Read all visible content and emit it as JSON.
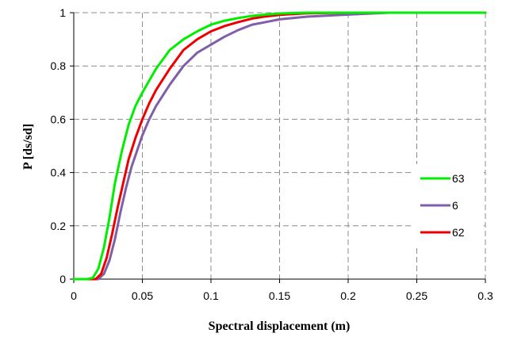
{
  "chart_data": {
    "type": "line",
    "title": "",
    "xlabel": "Spectral displacement (m)",
    "ylabel": "P [ds/sd]",
    "xlim": [
      0,
      0.3
    ],
    "ylim": [
      0,
      1
    ],
    "x_ticks": [
      "0",
      "0.05",
      "0.1",
      "0.15",
      "0.2",
      "0.25",
      "0.3"
    ],
    "y_ticks": [
      "0",
      "0.2",
      "0.4",
      "0.6",
      "0.8",
      "1"
    ],
    "grid": true,
    "legend_position": "right",
    "series": [
      {
        "name": "63",
        "color": "#00ee00",
        "points": [
          [
            0,
            0
          ],
          [
            0.01,
            0
          ],
          [
            0.014,
            0.005
          ],
          [
            0.018,
            0.04
          ],
          [
            0.022,
            0.12
          ],
          [
            0.026,
            0.23
          ],
          [
            0.03,
            0.36
          ],
          [
            0.035,
            0.48
          ],
          [
            0.04,
            0.58
          ],
          [
            0.045,
            0.65
          ],
          [
            0.05,
            0.7
          ],
          [
            0.06,
            0.79
          ],
          [
            0.07,
            0.86
          ],
          [
            0.08,
            0.9
          ],
          [
            0.09,
            0.93
          ],
          [
            0.1,
            0.955
          ],
          [
            0.11,
            0.97
          ],
          [
            0.12,
            0.98
          ],
          [
            0.13,
            0.988
          ],
          [
            0.14,
            0.993
          ],
          [
            0.15,
            0.997
          ],
          [
            0.17,
            1
          ],
          [
            0.3,
            1
          ]
        ]
      },
      {
        "name": "6",
        "color": "#7f5fa7",
        "points": [
          [
            0,
            0
          ],
          [
            0.018,
            0
          ],
          [
            0.022,
            0.02
          ],
          [
            0.026,
            0.07
          ],
          [
            0.03,
            0.15
          ],
          [
            0.034,
            0.25
          ],
          [
            0.038,
            0.34
          ],
          [
            0.042,
            0.42
          ],
          [
            0.046,
            0.48
          ],
          [
            0.05,
            0.54
          ],
          [
            0.055,
            0.6
          ],
          [
            0.06,
            0.65
          ],
          [
            0.07,
            0.73
          ],
          [
            0.08,
            0.8
          ],
          [
            0.09,
            0.85
          ],
          [
            0.1,
            0.88
          ],
          [
            0.11,
            0.91
          ],
          [
            0.12,
            0.935
          ],
          [
            0.13,
            0.955
          ],
          [
            0.14,
            0.965
          ],
          [
            0.15,
            0.975
          ],
          [
            0.17,
            0.985
          ],
          [
            0.2,
            0.993
          ],
          [
            0.23,
            1
          ],
          [
            0.3,
            1
          ]
        ]
      },
      {
        "name": "62",
        "color": "#ee0000",
        "points": [
          [
            0,
            0
          ],
          [
            0.016,
            0
          ],
          [
            0.02,
            0.02
          ],
          [
            0.024,
            0.08
          ],
          [
            0.028,
            0.17
          ],
          [
            0.032,
            0.27
          ],
          [
            0.036,
            0.36
          ],
          [
            0.04,
            0.45
          ],
          [
            0.045,
            0.53
          ],
          [
            0.05,
            0.6
          ],
          [
            0.055,
            0.66
          ],
          [
            0.06,
            0.71
          ],
          [
            0.07,
            0.79
          ],
          [
            0.08,
            0.86
          ],
          [
            0.09,
            0.9
          ],
          [
            0.1,
            0.93
          ],
          [
            0.11,
            0.95
          ],
          [
            0.12,
            0.965
          ],
          [
            0.13,
            0.978
          ],
          [
            0.14,
            0.986
          ],
          [
            0.15,
            0.992
          ],
          [
            0.17,
            0.998
          ],
          [
            0.2,
            1
          ],
          [
            0.3,
            1
          ]
        ]
      }
    ]
  }
}
